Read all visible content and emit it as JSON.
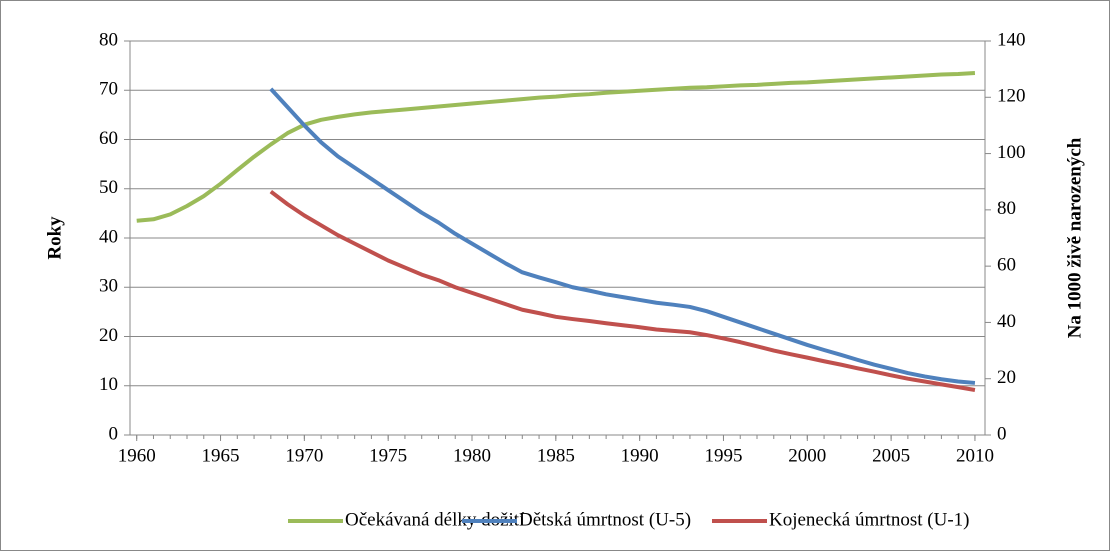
{
  "chart_data": {
    "type": "line",
    "ylabel": "Roky",
    "y2label": "Na 1000 živě narozených",
    "x": [
      1960,
      1961,
      1962,
      1963,
      1964,
      1965,
      1966,
      1967,
      1968,
      1969,
      1970,
      1971,
      1972,
      1973,
      1974,
      1975,
      1976,
      1977,
      1978,
      1979,
      1980,
      1981,
      1982,
      1983,
      1984,
      1985,
      1986,
      1987,
      1988,
      1989,
      1990,
      1991,
      1992,
      1993,
      1994,
      1995,
      1996,
      1997,
      1998,
      1999,
      2000,
      2001,
      2002,
      2003,
      2004,
      2005,
      2006,
      2007,
      2008,
      2009,
      2010
    ],
    "xlim": [
      1959.6,
      2010.6
    ],
    "xticks": [
      1960,
      1965,
      1970,
      1975,
      1980,
      1985,
      1990,
      1995,
      2000,
      2005,
      2010
    ],
    "ylim": [
      0,
      80
    ],
    "yticks": [
      0,
      10,
      20,
      30,
      40,
      50,
      60,
      70,
      80
    ],
    "y2lim": [
      0,
      140
    ],
    "y2ticks": [
      0,
      20,
      40,
      60,
      80,
      100,
      120,
      140
    ],
    "grid": true,
    "legend": "bottom",
    "series": [
      {
        "name": "Očekávaná délky dožití",
        "color": "#9bbb59",
        "values": [
          43.5,
          43.8,
          44.8,
          46.5,
          48.5,
          51,
          53.8,
          56.5,
          59,
          61.3,
          63,
          64,
          64.6,
          65.1,
          65.5,
          65.8,
          66.1,
          66.4,
          66.7,
          67,
          67.3,
          67.6,
          67.9,
          68.2,
          68.5,
          68.7,
          69,
          69.2,
          69.5,
          69.7,
          69.9,
          70.1,
          70.3,
          70.5,
          70.6,
          70.8,
          71,
          71.1,
          71.3,
          71.5,
          71.6,
          71.8,
          72,
          72.2,
          72.4,
          72.6,
          72.8,
          73,
          73.2,
          73.3,
          73.5
        ]
      },
      {
        "name": "Dětská úmrtnost (U-5)",
        "color": "#4f81bd",
        "axis": "y2",
        "values": [
          null,
          null,
          null,
          null,
          null,
          null,
          null,
          null,
          123,
          116.5,
          110,
          104,
          99,
          95,
          91,
          87,
          83,
          79,
          75.5,
          71.5,
          68,
          64.5,
          61,
          57.8,
          56,
          54.3,
          52.5,
          51.3,
          50,
          49,
          48,
          47,
          46.3,
          45.5,
          44,
          42,
          40,
          38,
          36,
          34,
          32,
          30.2,
          28.5,
          26.7,
          25,
          23.5,
          22,
          20.8,
          19.8,
          19,
          18.5
        ]
      },
      {
        "name": "Kojenecká úmrtnost (U-1)",
        "color": "#c0504d",
        "axis": "y2",
        "values": [
          null,
          null,
          null,
          null,
          null,
          null,
          null,
          null,
          86.5,
          82,
          78,
          74.5,
          71,
          68,
          65,
          62,
          59.5,
          57,
          55,
          52.5,
          50.5,
          48.5,
          46.5,
          44.5,
          43.3,
          42,
          41.2,
          40.5,
          39.7,
          39,
          38.3,
          37.5,
          37,
          36.5,
          35.5,
          34.3,
          33,
          31.5,
          30,
          28.7,
          27.5,
          26.2,
          25,
          23.7,
          22.5,
          21.2,
          20,
          19,
          18,
          17,
          16
        ]
      }
    ]
  }
}
